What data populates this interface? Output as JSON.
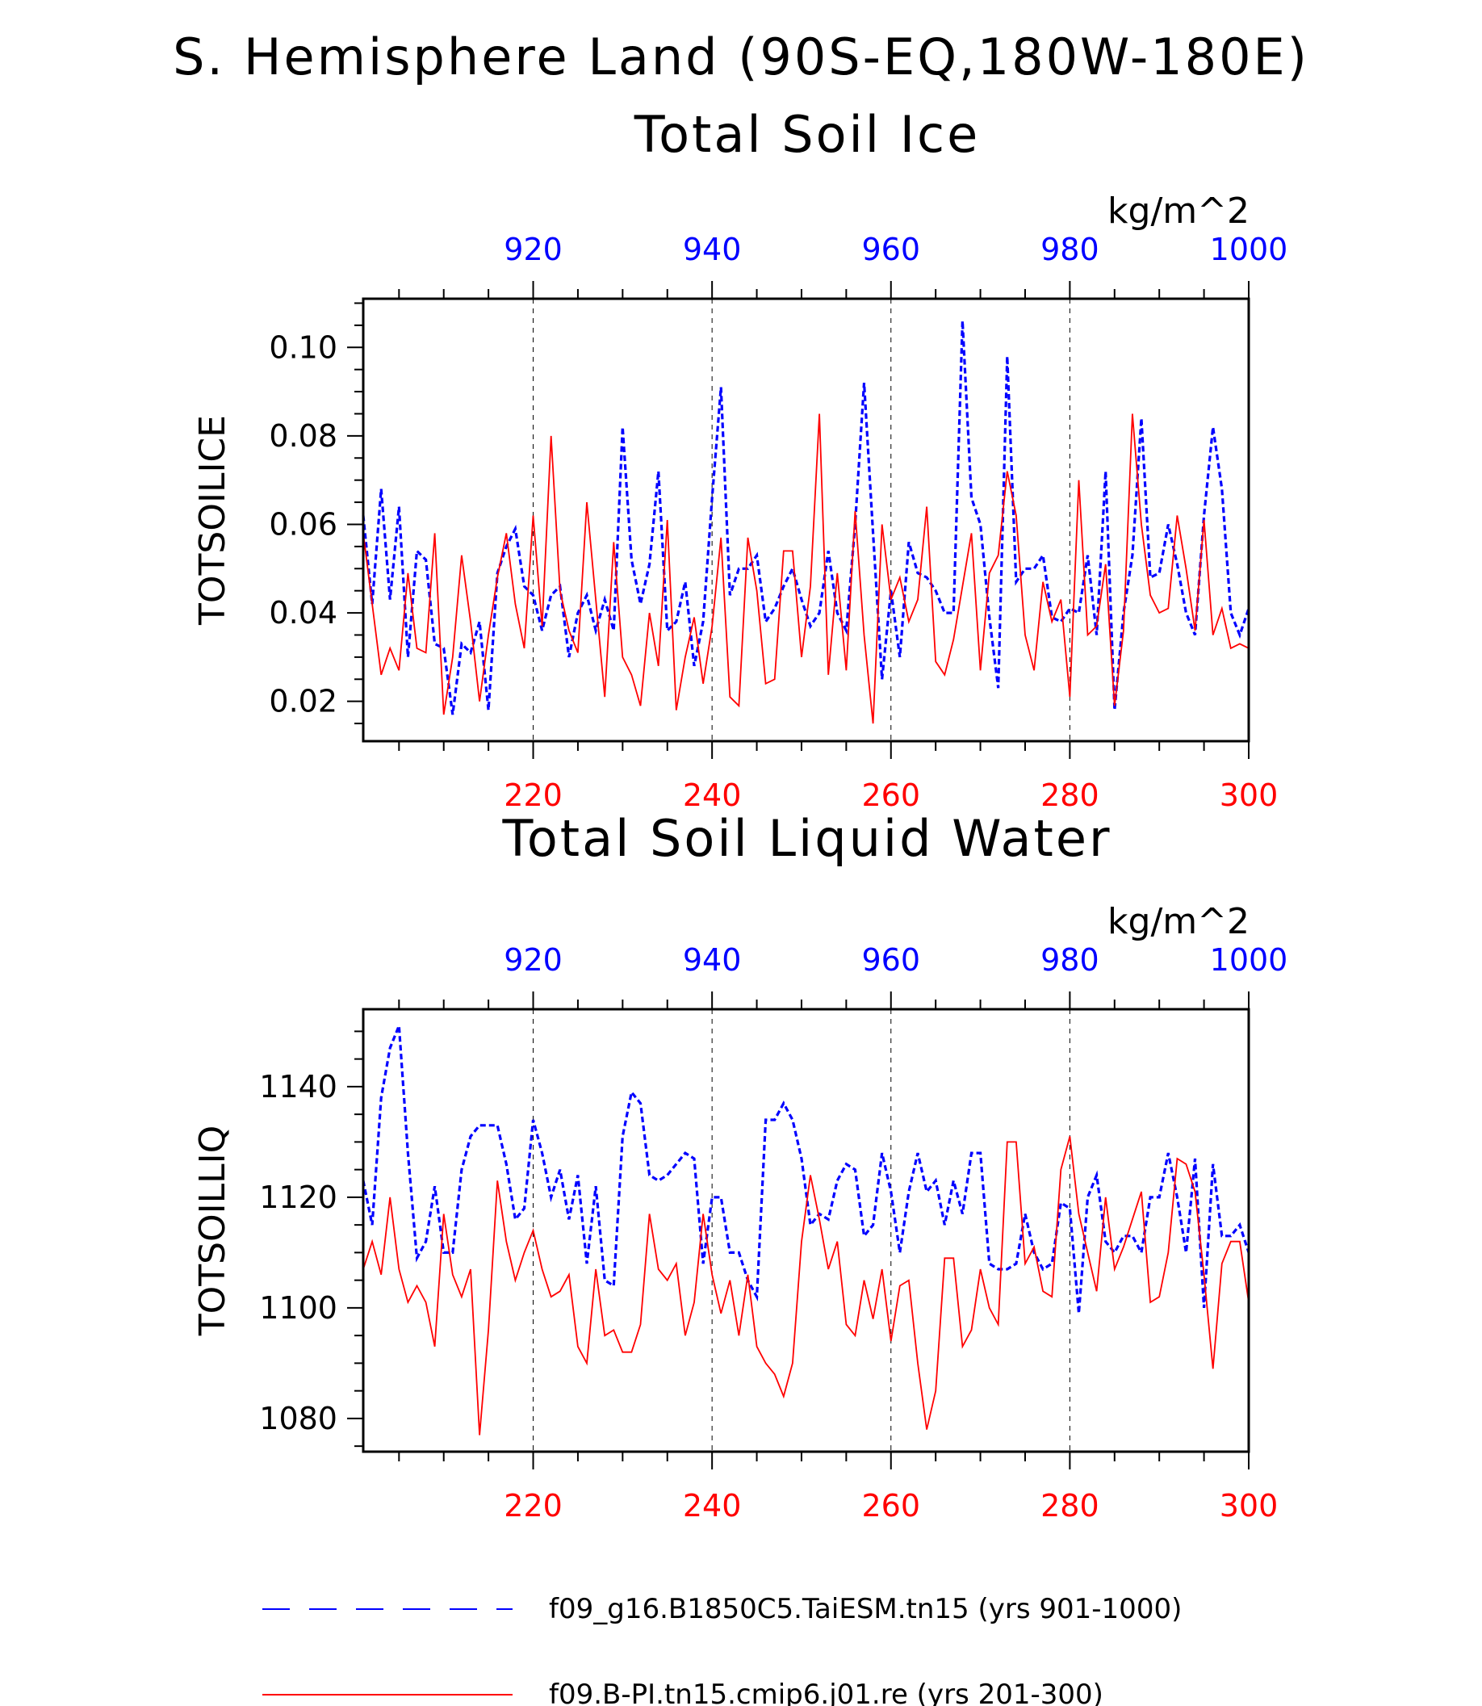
{
  "figure": {
    "title": "S. Hemisphere Land (90S-EQ,180W-180E)",
    "colors": {
      "model1": "#0000ff",
      "model2": "#ff0000",
      "grid": "#000000"
    }
  },
  "legend": [
    {
      "label": "f09_g16.B1850C5.TaiESM.tn15 (yrs 901-1000)",
      "color": "#0000ff",
      "style": "dashed"
    },
    {
      "label": "f09.B-PI.tn15.cmip6.j01.re (yrs 201-300)",
      "color": "#ff0000",
      "style": "solid"
    }
  ],
  "chart_data": [
    {
      "type": "line",
      "title": "Total Soil Ice",
      "units": "kg/m^2",
      "ylabel": "TOTSOILICE",
      "ylim": [
        0.011,
        0.111
      ],
      "yticks": [
        "0.02",
        "0.04",
        "0.06",
        "0.08",
        "0.10"
      ],
      "ytick_values": [
        0.02,
        0.04,
        0.06,
        0.08,
        0.1
      ],
      "top_axis": {
        "range": [
          901,
          1000
        ],
        "ticks": [
          920,
          940,
          960,
          980,
          1000
        ],
        "color": "#0000ff"
      },
      "bottom_axis": {
        "range": [
          201,
          300
        ],
        "ticks": [
          220,
          240,
          260,
          280,
          300
        ],
        "color": "#ff0000"
      },
      "grid": "vertical dashed at major ticks",
      "series": [
        {
          "color": "#0000ff",
          "style": "dashed",
          "axis": "top",
          "x_start": 901,
          "values": [
            0.062,
            0.042,
            0.068,
            0.043,
            0.064,
            0.03,
            0.054,
            0.052,
            0.033,
            0.032,
            0.017,
            0.033,
            0.031,
            0.038,
            0.018,
            0.049,
            0.055,
            0.059,
            0.046,
            0.044,
            0.036,
            0.044,
            0.046,
            0.03,
            0.04,
            0.044,
            0.036,
            0.043,
            0.036,
            0.082,
            0.052,
            0.042,
            0.051,
            0.072,
            0.036,
            0.038,
            0.047,
            0.028,
            0.038,
            0.066,
            0.091,
            0.044,
            0.05,
            0.05,
            0.053,
            0.038,
            0.041,
            0.046,
            0.05,
            0.043,
            0.037,
            0.04,
            0.054,
            0.04,
            0.036,
            0.06,
            0.092,
            0.058,
            0.025,
            0.045,
            0.03,
            0.056,
            0.049,
            0.048,
            0.045,
            0.04,
            0.04,
            0.106,
            0.066,
            0.06,
            0.039,
            0.023,
            0.098,
            0.047,
            0.05,
            0.05,
            0.053,
            0.039,
            0.038,
            0.041,
            0.04,
            0.053,
            0.035,
            0.072,
            0.018,
            0.04,
            0.053,
            0.084,
            0.048,
            0.049,
            0.06,
            0.051,
            0.04,
            0.035,
            0.062,
            0.082,
            0.068,
            0.04,
            0.035,
            0.041
          ]
        },
        {
          "color": "#ff0000",
          "style": "solid",
          "axis": "bottom",
          "x_start": 201,
          "values": [
            0.058,
            0.042,
            0.026,
            0.032,
            0.027,
            0.049,
            0.032,
            0.031,
            0.058,
            0.017,
            0.03,
            0.053,
            0.038,
            0.02,
            0.035,
            0.048,
            0.058,
            0.042,
            0.032,
            0.062,
            0.037,
            0.08,
            0.045,
            0.036,
            0.031,
            0.065,
            0.043,
            0.021,
            0.056,
            0.03,
            0.026,
            0.019,
            0.04,
            0.028,
            0.061,
            0.018,
            0.03,
            0.039,
            0.024,
            0.037,
            0.057,
            0.021,
            0.019,
            0.057,
            0.045,
            0.024,
            0.025,
            0.054,
            0.054,
            0.03,
            0.046,
            0.085,
            0.026,
            0.049,
            0.027,
            0.063,
            0.035,
            0.015,
            0.06,
            0.043,
            0.048,
            0.038,
            0.043,
            0.064,
            0.029,
            0.026,
            0.034,
            0.046,
            0.058,
            0.027,
            0.049,
            0.053,
            0.072,
            0.062,
            0.035,
            0.027,
            0.047,
            0.038,
            0.043,
            0.021,
            0.07,
            0.035,
            0.037,
            0.051,
            0.019,
            0.036,
            0.085,
            0.06,
            0.044,
            0.04,
            0.041,
            0.062,
            0.05,
            0.036,
            0.061,
            0.035,
            0.041,
            0.032,
            0.033,
            0.032
          ]
        }
      ]
    },
    {
      "type": "line",
      "title": "Total Soil Liquid Water",
      "units": "kg/m^2",
      "ylabel": "TOTSOILLIQ",
      "ylim": [
        1074,
        1154
      ],
      "yticks": [
        "1080",
        "1100",
        "1120",
        "1140"
      ],
      "ytick_values": [
        1080,
        1100,
        1120,
        1140
      ],
      "top_axis": {
        "range": [
          901,
          1000
        ],
        "ticks": [
          920,
          940,
          960,
          980,
          1000
        ],
        "color": "#0000ff"
      },
      "bottom_axis": {
        "range": [
          201,
          300
        ],
        "ticks": [
          220,
          240,
          260,
          280,
          300
        ],
        "color": "#ff0000"
      },
      "grid": "vertical dashed at major ticks",
      "series": [
        {
          "color": "#0000ff",
          "style": "dashed",
          "axis": "top",
          "x_start": 901,
          "values": [
            1123,
            1115,
            1138,
            1147,
            1151,
            1128,
            1109,
            1112,
            1122,
            1110,
            1110,
            1125,
            1131,
            1133,
            1133,
            1133,
            1126,
            1116,
            1118,
            1134,
            1128,
            1120,
            1125,
            1116,
            1124,
            1108,
            1122,
            1105,
            1104,
            1131,
            1139,
            1137,
            1124,
            1123,
            1124,
            1126,
            1128,
            1127,
            1108,
            1120,
            1120,
            1110,
            1110,
            1105,
            1102,
            1134,
            1134,
            1137,
            1134,
            1127,
            1115,
            1117,
            1116,
            1123,
            1126,
            1125,
            1113,
            1115,
            1128,
            1121,
            1110,
            1121,
            1128,
            1121,
            1123,
            1115,
            1123,
            1117,
            1128,
            1128,
            1108,
            1107,
            1107,
            1108,
            1117,
            1110,
            1107,
            1108,
            1119,
            1118,
            1099,
            1120,
            1124,
            1112,
            1110,
            1113,
            1113,
            1110,
            1120,
            1120,
            1128,
            1120,
            1110,
            1127,
            1100,
            1126,
            1113,
            1113,
            1115,
            1110
          ]
        },
        {
          "color": "#ff0000",
          "style": "solid",
          "axis": "bottom",
          "x_start": 201,
          "values": [
            1107,
            1112,
            1106,
            1120,
            1107,
            1101,
            1104,
            1101,
            1093,
            1117,
            1106,
            1102,
            1107,
            1077,
            1096,
            1123,
            1112,
            1105,
            1110,
            1114,
            1107,
            1102,
            1103,
            1106,
            1093,
            1090,
            1107,
            1095,
            1096,
            1092,
            1092,
            1097,
            1117,
            1107,
            1105,
            1108,
            1095,
            1101,
            1117,
            1106,
            1099,
            1105,
            1095,
            1106,
            1093,
            1090,
            1088,
            1084,
            1090,
            1112,
            1124,
            1116,
            1107,
            1112,
            1097,
            1095,
            1105,
            1098,
            1107,
            1094,
            1104,
            1105,
            1090,
            1078,
            1085,
            1109,
            1109,
            1093,
            1096,
            1107,
            1100,
            1097,
            1130,
            1130,
            1108,
            1111,
            1103,
            1102,
            1125,
            1131,
            1117,
            1110,
            1103,
            1120,
            1107,
            1111,
            1116,
            1121,
            1101,
            1102,
            1110,
            1127,
            1126,
            1121,
            1106,
            1089,
            1108,
            1112,
            1112,
            1101
          ]
        }
      ]
    }
  ]
}
